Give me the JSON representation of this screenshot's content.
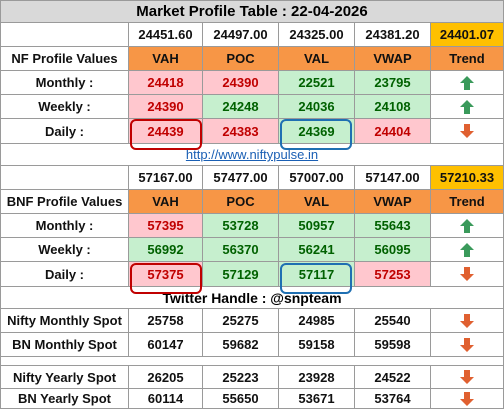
{
  "title": "Market Profile Table : 22-04-2026",
  "nf": {
    "spot_header": [
      "24451.60",
      "24497.00",
      "24325.00",
      "24381.20",
      "24401.07"
    ],
    "label": "NF Profile Values",
    "cols": [
      "VAH",
      "POC",
      "VAL",
      "VWAP",
      "Trend"
    ],
    "rows": [
      {
        "label": "Monthly :",
        "vals": [
          "24418",
          "24390",
          "22521",
          "23795"
        ],
        "trend": "up"
      },
      {
        "label": "Weekly :",
        "vals": [
          "24390",
          "24248",
          "24036",
          "24108"
        ],
        "trend": "up"
      },
      {
        "label": "Daily :",
        "vals": [
          "24439",
          "24383",
          "24369",
          "24404"
        ],
        "trend": "down"
      }
    ]
  },
  "url": "http://www.niftypulse.in",
  "bnf": {
    "spot_header": [
      "57167.00",
      "57477.00",
      "57007.00",
      "57147.00",
      "57210.33"
    ],
    "label": "BNF Profile Values",
    "cols": [
      "VAH",
      "POC",
      "VAL",
      "VWAP",
      "Trend"
    ],
    "rows": [
      {
        "label": "Monthly :",
        "vals": [
          "57395",
          "53728",
          "50957",
          "55643"
        ],
        "trend": "up"
      },
      {
        "label": "Weekly :",
        "vals": [
          "56992",
          "56370",
          "56241",
          "56095"
        ],
        "trend": "up"
      },
      {
        "label": "Daily :",
        "vals": [
          "57375",
          "57129",
          "57117",
          "57253"
        ],
        "trend": "down"
      }
    ]
  },
  "twitter": "Twitter Handle : @snpteam",
  "monthly_spot": [
    {
      "label": "Nifty Monthly Spot",
      "vals": [
        "25758",
        "25275",
        "24985",
        "25540"
      ],
      "trend": "down"
    },
    {
      "label": "BN Monthly Spot",
      "vals": [
        "60147",
        "59682",
        "59158",
        "59598"
      ],
      "trend": "down"
    }
  ],
  "yearly_spot": [
    {
      "label": "Nifty Yearly Spot",
      "vals": [
        "26205",
        "25223",
        "23928",
        "24522"
      ],
      "trend": "down"
    },
    {
      "label": "BN Yearly Spot",
      "vals": [
        "60114",
        "55650",
        "53671",
        "53764"
      ],
      "trend": "down"
    }
  ],
  "colors": {
    "up": "#3a9a5b",
    "down": "#e06030",
    "highlight_red": "#c00000",
    "highlight_blue": "#1f6fb2"
  }
}
